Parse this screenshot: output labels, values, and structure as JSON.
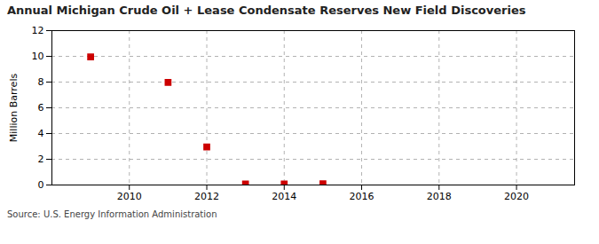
{
  "chart_data": {
    "type": "scatter",
    "title": "Annual Michigan Crude Oil + Lease Condensate Reserves New Field Discoveries",
    "ylabel": "Million Barrels",
    "caption": "Source: U.S. Energy Information Administration",
    "x": [
      2009,
      2011,
      2012,
      2013,
      2014,
      2015
    ],
    "values": [
      9.95,
      7.97,
      2.95,
      0.08,
      0.08,
      0.1
    ],
    "color": "#cc0000",
    "marker": "square",
    "xlim": [
      2008.0,
      2021.5
    ],
    "ylim": [
      0,
      12
    ],
    "xticks": [
      2010,
      2012,
      2014,
      2016,
      2018,
      2020
    ],
    "yticks": [
      0,
      2,
      4,
      6,
      8,
      10,
      12
    ],
    "grid": true
  }
}
